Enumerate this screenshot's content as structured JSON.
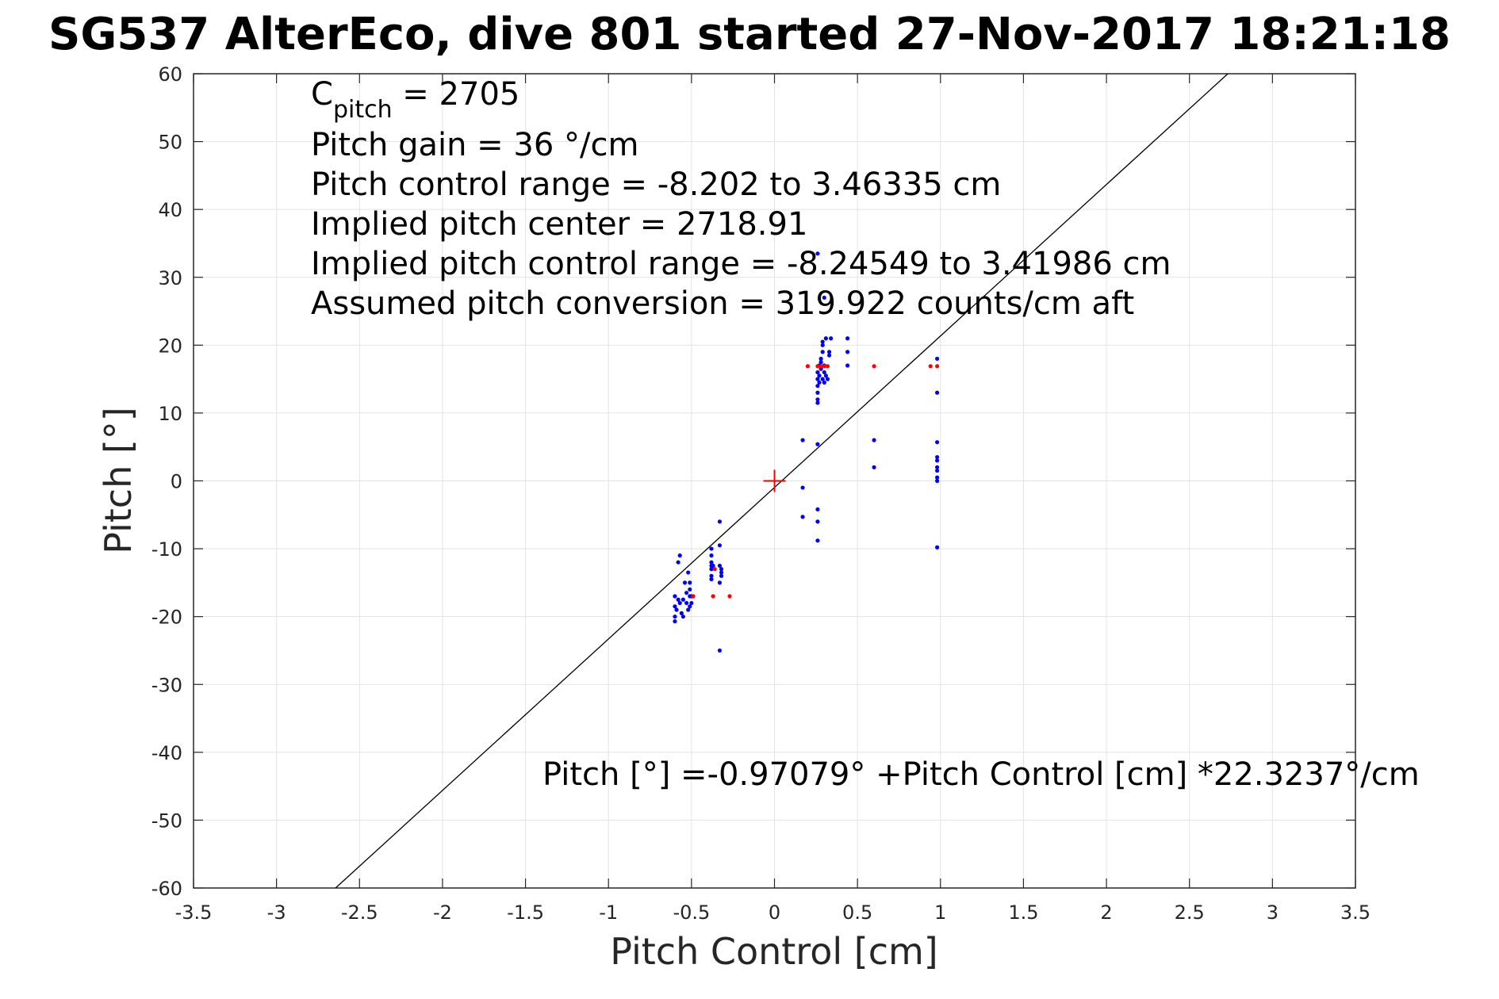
{
  "chart_data": {
    "type": "scatter",
    "title": "SG537 AlterEco, dive 801 started 27-Nov-2017 18:21:18",
    "xlabel": "Pitch Control [cm]",
    "ylabel": "Pitch [°]",
    "xlim": [
      -3.5,
      3.5
    ],
    "ylim": [
      -60,
      60
    ],
    "xticks": [
      -3.5,
      -3,
      -2.5,
      -2,
      -1.5,
      -1,
      -0.5,
      0,
      0.5,
      1,
      1.5,
      2,
      2.5,
      3,
      3.5
    ],
    "xtick_labels": [
      "-3.5",
      "-3",
      "-2.5",
      "-2",
      "-1.5",
      "-1",
      "-0.5",
      "0",
      "0.5",
      "1",
      "1.5",
      "2",
      "2.5",
      "3",
      "3.5"
    ],
    "yticks": [
      -60,
      -50,
      -40,
      -30,
      -20,
      -10,
      0,
      10,
      20,
      30,
      40,
      50,
      60
    ],
    "ytick_labels": [
      "-60",
      "-50",
      "-40",
      "-30",
      "-20",
      "-10",
      "0",
      "10",
      "20",
      "30",
      "40",
      "50",
      "60"
    ],
    "grid": true,
    "annotations": {
      "c_pitch_prefix": "C",
      "c_pitch_sub": "pitch",
      "c_pitch_value": " = 2705",
      "lines": [
        "Pitch gain = 36 °/cm",
        "Pitch control range = -8.202 to 3.46335 cm",
        "Implied pitch center = 2718.91",
        "Implied pitch control range = -8.24549 to 3.41986 cm",
        "Assumed pitch conversion = 319.922 counts/cm aft"
      ],
      "fit_equation": "Pitch [°] =-0.97079° +Pitch Control [cm] *22.3237°/cm"
    },
    "fit_line": {
      "intercept": -0.97079,
      "slope": 22.3237,
      "color": "#000000"
    },
    "center_marker": {
      "x": 0,
      "y": 0,
      "color": "#ff0000"
    },
    "series": [
      {
        "color": "#0000ff",
        "points": [
          [
            -0.57,
            -11.0
          ],
          [
            -0.58,
            -12.0
          ],
          [
            -0.6,
            -17.0
          ],
          [
            -0.58,
            -17.5
          ],
          [
            -0.6,
            -18.5
          ],
          [
            -0.59,
            -19.0
          ],
          [
            -0.6,
            -20.0
          ],
          [
            -0.6,
            -20.7
          ],
          [
            -0.57,
            -18.0
          ],
          [
            -0.56,
            -19.5
          ],
          [
            -0.55,
            -20.0
          ],
          [
            -0.55,
            -17.5
          ],
          [
            -0.54,
            -15.0
          ],
          [
            -0.53,
            -16.5
          ],
          [
            -0.53,
            -18.0
          ],
          [
            -0.52,
            -19.0
          ],
          [
            -0.52,
            -13.5
          ],
          [
            -0.51,
            -15.0
          ],
          [
            -0.51,
            -16.0
          ],
          [
            -0.51,
            -17.0
          ],
          [
            -0.51,
            -18.5
          ],
          [
            -0.5,
            -17.0
          ],
          [
            -0.5,
            -18.0
          ],
          [
            -0.49,
            -17.0
          ],
          [
            -0.38,
            -10.0
          ],
          [
            -0.38,
            -11.0
          ],
          [
            -0.38,
            -12.0
          ],
          [
            -0.38,
            -12.5
          ],
          [
            -0.38,
            -13.0
          ],
          [
            -0.38,
            -14.0
          ],
          [
            -0.38,
            -14.5
          ],
          [
            -0.37,
            -12.5
          ],
          [
            -0.33,
            -6.0
          ],
          [
            -0.33,
            -9.5
          ],
          [
            -0.33,
            -12.5
          ],
          [
            -0.32,
            -13.0
          ],
          [
            -0.32,
            -13.5
          ],
          [
            -0.32,
            -14.0
          ],
          [
            -0.33,
            -15.0
          ],
          [
            -0.33,
            -25.0
          ],
          [
            0.17,
            6.0
          ],
          [
            0.17,
            -1.0
          ],
          [
            0.17,
            -5.3
          ],
          [
            0.26,
            5.4
          ],
          [
            0.26,
            -4.2
          ],
          [
            0.26,
            -6.0
          ],
          [
            0.26,
            -8.8
          ],
          [
            0.26,
            11.5
          ],
          [
            0.26,
            12.0
          ],
          [
            0.26,
            13.0
          ],
          [
            0.26,
            14.0
          ],
          [
            0.26,
            15.0
          ],
          [
            0.26,
            16.0
          ],
          [
            0.27,
            17.0
          ],
          [
            0.27,
            15.5
          ],
          [
            0.27,
            14.5
          ],
          [
            0.28,
            16.5
          ],
          [
            0.28,
            17.5
          ],
          [
            0.28,
            18.0
          ],
          [
            0.29,
            19.0
          ],
          [
            0.29,
            20.0
          ],
          [
            0.29,
            20.5
          ],
          [
            0.29,
            15.0
          ],
          [
            0.3,
            17.0
          ],
          [
            0.3,
            16.0
          ],
          [
            0.3,
            14.5
          ],
          [
            0.31,
            15.5
          ],
          [
            0.31,
            21.0
          ],
          [
            0.32,
            15.0
          ],
          [
            0.33,
            18.5
          ],
          [
            0.33,
            19.0
          ],
          [
            0.34,
            21.0
          ],
          [
            0.44,
            21.0
          ],
          [
            0.44,
            19.0
          ],
          [
            0.44,
            17.0
          ],
          [
            0.6,
            6.0
          ],
          [
            0.6,
            2.0
          ],
          [
            0.98,
            18.0
          ],
          [
            0.98,
            13.0
          ],
          [
            0.98,
            5.7
          ],
          [
            0.98,
            3.5
          ],
          [
            0.98,
            3.0
          ],
          [
            0.98,
            2.0
          ],
          [
            0.98,
            1.5
          ],
          [
            0.98,
            0.5
          ],
          [
            0.98,
            0.0
          ],
          [
            0.98,
            -9.8
          ],
          [
            0.26,
            33.5
          ],
          [
            0.3,
            27.0
          ]
        ]
      },
      {
        "color": "#ff0000",
        "points": [
          [
            -0.49,
            -17.0
          ],
          [
            -0.37,
            -17.0
          ],
          [
            -0.36,
            -13.0
          ],
          [
            -0.27,
            -17.0
          ],
          [
            0.2,
            16.9
          ],
          [
            0.26,
            16.9
          ],
          [
            0.28,
            16.9
          ],
          [
            0.3,
            16.9
          ],
          [
            0.32,
            16.9
          ],
          [
            0.6,
            16.9
          ],
          [
            0.94,
            16.9
          ],
          [
            0.98,
            16.9
          ]
        ]
      }
    ]
  }
}
